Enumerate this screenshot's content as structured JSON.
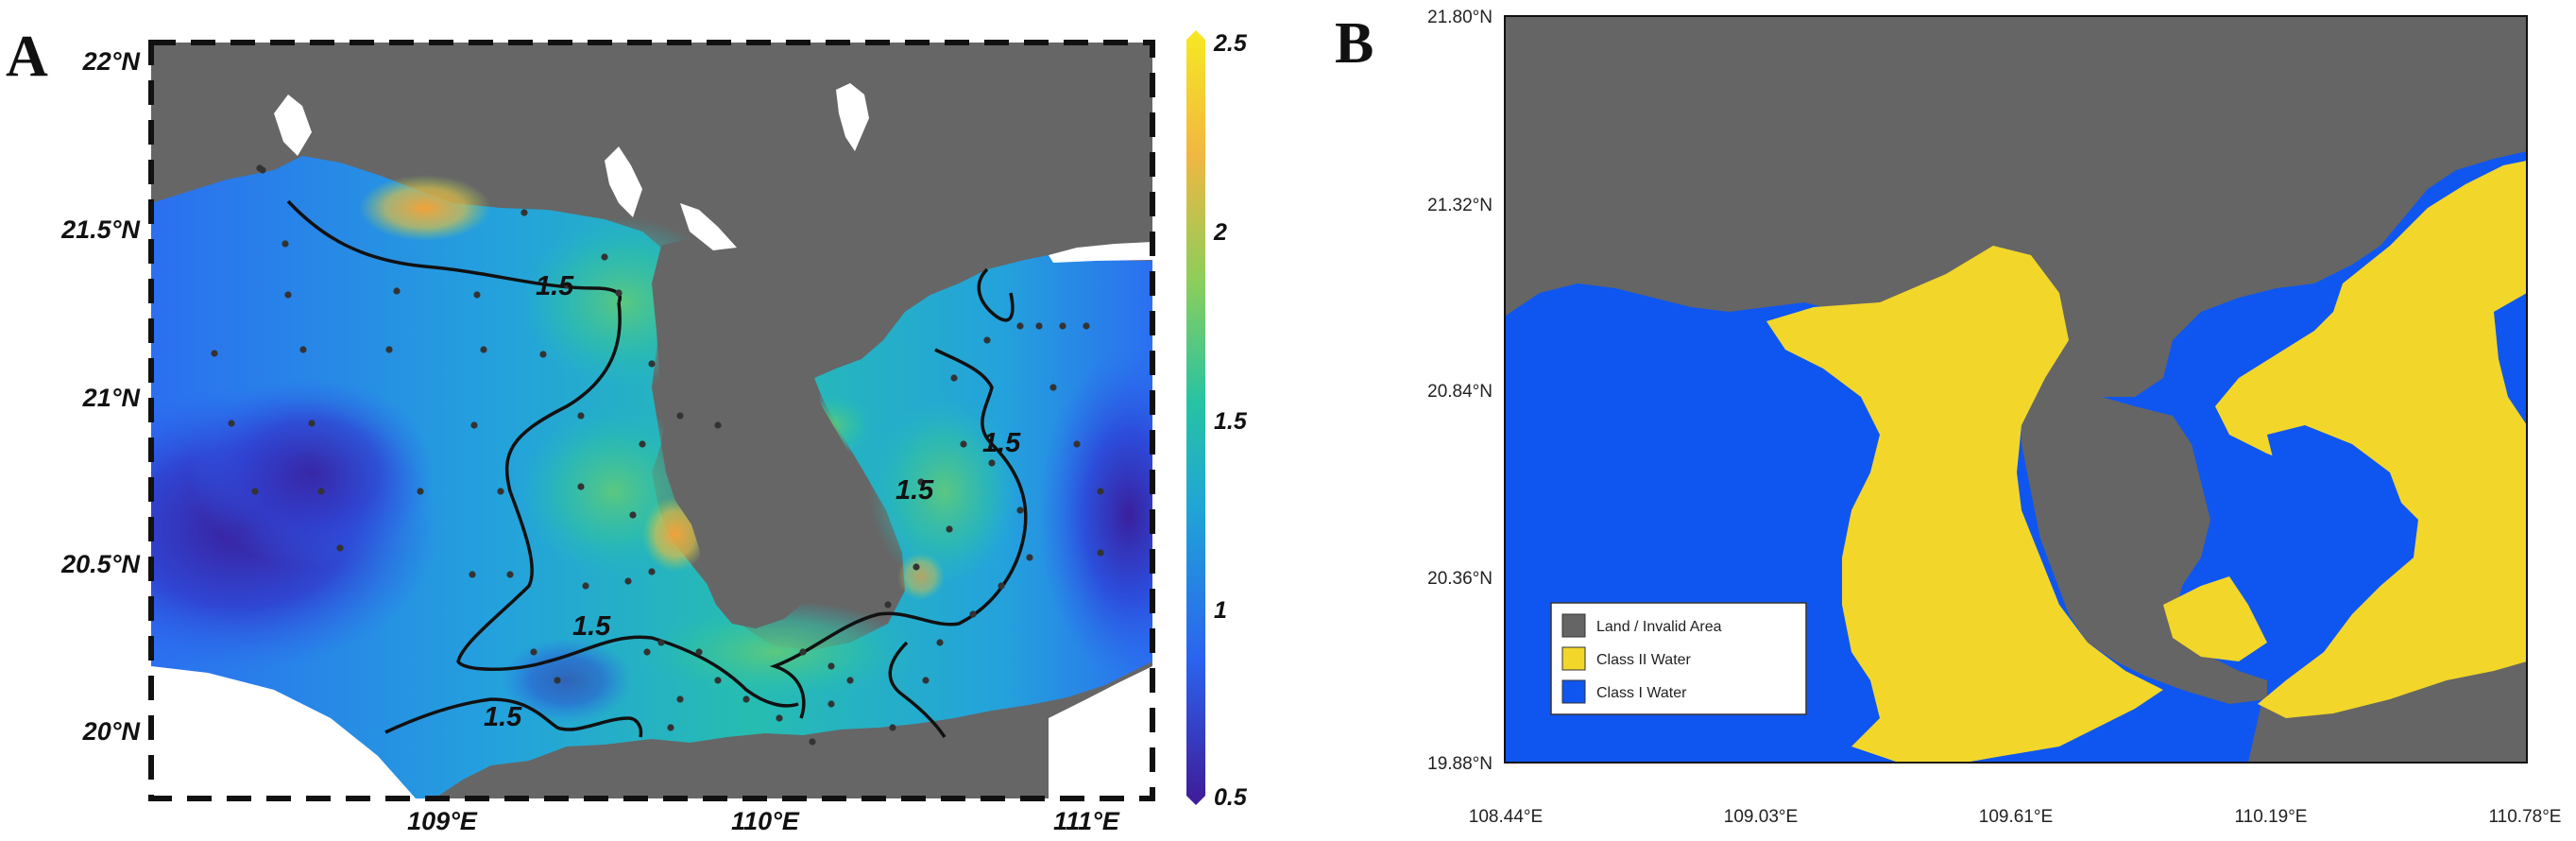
{
  "panel_a": {
    "letter": "A",
    "lat_ticks": [
      "22°N",
      "21.5°N",
      "21°N",
      "20.5°N",
      "20°N"
    ],
    "lon_ticks": [
      "109°E",
      "110°E",
      "111°E"
    ],
    "contour_label": "1.5",
    "colorbar": {
      "ticks": [
        "2.5",
        "2",
        "1.5",
        "1",
        "0.5"
      ],
      "range": [
        0.5,
        2.5
      ],
      "colors": [
        "#3e1f9c",
        "#2b63f0",
        "#20a5d6",
        "#26c3a3",
        "#8cce5b",
        "#f2b741",
        "#f6e524"
      ]
    },
    "colors": {
      "land": "#666666",
      "frame": "#111111",
      "stations": "#333333"
    }
  },
  "panel_b": {
    "letter": "B",
    "lat_ticks": [
      "21.80°N",
      "21.32°N",
      "20.84°N",
      "20.36°N",
      "19.88°N"
    ],
    "lon_ticks": [
      "108.44°E",
      "109.03°E",
      "109.61°E",
      "110.19°E",
      "110.78°E"
    ],
    "legend": [
      {
        "label": "Land / Invalid Area",
        "color": "#656565"
      },
      {
        "label": "Class II Water",
        "color": "#f2d62a"
      },
      {
        "label": "Class I Water",
        "color": "#0f56f0"
      }
    ]
  }
}
